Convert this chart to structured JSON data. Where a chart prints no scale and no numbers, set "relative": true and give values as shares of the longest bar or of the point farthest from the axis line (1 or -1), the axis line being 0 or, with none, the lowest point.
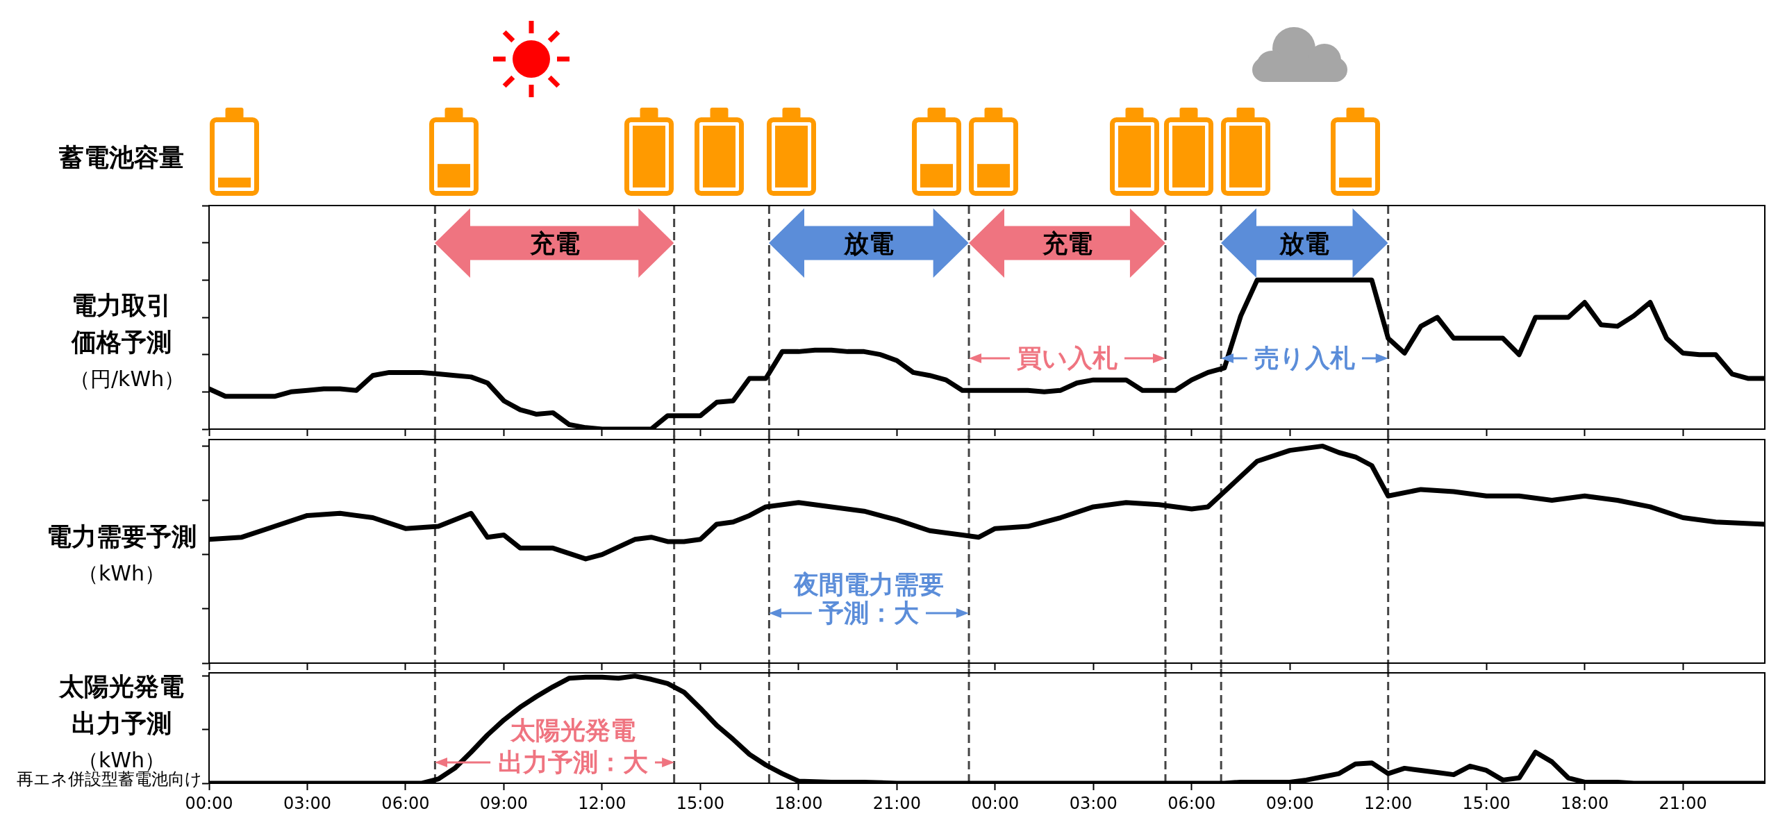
{
  "chart_data": [
    {
      "type": "line",
      "ylabel": "電力取引価格予測（円/kWh）",
      "relative": true,
      "color": "#000000",
      "x": [
        "--01-01T00:00",
        "--01-01T00:30",
        "--01-01T01:00",
        "--01-01T01:30",
        "--01-01T02:00",
        "--01-01T02:30",
        "--01-01T03:00",
        "--01-01T03:30",
        "--01-01T04:00",
        "--01-01T04:30",
        "--01-01T05:00",
        "--01-01T05:30",
        "--01-01T06:00",
        "--01-01T06:30",
        "--01-01T07:00",
        "--01-01T07:30",
        "--01-01T08:00",
        "--01-01T08:30",
        "--01-01T09:00",
        "--01-01T09:30",
        "--01-01T10:00",
        "--01-01T10:30",
        "--01-01T11:00",
        "--01-01T11:30",
        "--01-01T12:00",
        "--01-01T12:30",
        "--01-01T13:00",
        "--01-01T13:30",
        "--01-01T14:00",
        "--01-01T14:30",
        "--01-01T15:00",
        "--01-01T15:30",
        "--01-01T16:00",
        "--01-01T16:30",
        "--01-01T17:00",
        "--01-01T17:30",
        "--01-01T18:00",
        "--01-01T18:30",
        "--01-01T19:00",
        "--01-01T19:30",
        "--01-01T20:00",
        "--01-01T20:30",
        "--01-01T21:00",
        "--01-01T21:30",
        "--01-01T22:00",
        "--01-01T22:30",
        "--01-01T23:00",
        "--01-01T23:30",
        "--01-02T00:00",
        "--01-02T00:30",
        "--01-02T01:00",
        "--01-02T01:30",
        "--01-02T02:00",
        "--01-02T02:30",
        "--01-02T03:00",
        "--01-02T03:30",
        "--01-02T04:00",
        "--01-02T04:30",
        "--01-02T05:00",
        "--01-02T05:30",
        "--01-02T06:00",
        "--01-02T06:30",
        "--01-02T07:00",
        "--01-02T07:30",
        "--01-02T08:00",
        "--01-02T08:30",
        "--01-02T09:00",
        "--01-02T09:30",
        "--01-02T10:00",
        "--01-02T10:30",
        "--01-02T11:00",
        "--01-02T11:30",
        "--01-02T12:00",
        "--01-02T12:30",
        "--01-02T13:00",
        "--01-02T13:30",
        "--01-02T14:00",
        "--01-02T14:30",
        "--01-02T15:00",
        "--01-02T15:30",
        "--01-02T16:00",
        "--01-02T16:30",
        "--01-02T17:00",
        "--01-02T17:30",
        "--01-02T18:00",
        "--01-02T18:30",
        "--01-02T19:00",
        "--01-02T19:30",
        "--01-02T20:00",
        "--01-02T20:30",
        "--01-02T21:00",
        "--01-02T21:30",
        "--01-02T22:00",
        "--01-02T22:30",
        "--01-02T23:00",
        "--01-02T23:30"
      ],
      "values": [
        0.27,
        0.22,
        0.22,
        0.22,
        0.22,
        0.25,
        0.26,
        0.27,
        0.27,
        0.26,
        0.36,
        0.38,
        0.38,
        0.38,
        0.37,
        0.36,
        0.35,
        0.31,
        0.19,
        0.13,
        0.1,
        0.11,
        0.03,
        0.01,
        0,
        0,
        0,
        0,
        0.09,
        0.09,
        0.09,
        0.18,
        0.19,
        0.34,
        0.34,
        0.52,
        0.52,
        0.53,
        0.53,
        0.52,
        0.52,
        0.5,
        0.46,
        0.38,
        0.36,
        0.33,
        0.26,
        0.26,
        0.26,
        0.26,
        0.26,
        0.25,
        0.26,
        0.31,
        0.33,
        0.33,
        0.33,
        0.26,
        0.26,
        0.26,
        0.33,
        0.38,
        0.41,
        0.76,
        1,
        1,
        1,
        1,
        1,
        1,
        1,
        1,
        0.61,
        0.51,
        0.69,
        0.75,
        0.61,
        0.61,
        0.61,
        0.61,
        0.5,
        0.75,
        0.75,
        0.75,
        0.85,
        0.7,
        0.69,
        0.76,
        0.85,
        0.61,
        0.51,
        0.5,
        0.5,
        0.37,
        0.34,
        0.34
      ],
      "xlim": [
        "--01-01T00:00",
        "--01-02T23:30"
      ],
      "xticks": [
        "--01-01T00:00",
        "--01-01T03:00",
        "--01-01T06:00",
        "--01-01T09:00",
        "--01-01T12:00",
        "--01-01T15:00",
        "--01-01T18:00",
        "--01-01T21:00",
        "--01-02T00:00",
        "--01-02T03:00",
        "--01-02T06:00",
        "--01-02T09:00",
        "--01-02T12:00",
        "--01-02T15:00",
        "--01-02T18:00",
        "--01-02T21:00"
      ],
      "tick_labels": false,
      "ref_lines": [
        {
          "axis": "x",
          "value": "--01-01T06:54",
          "line_style": "dashed",
          "color": "#444444"
        },
        {
          "axis": "x",
          "value": "--01-01T14:12",
          "line_style": "dashed",
          "color": "#444444"
        },
        {
          "axis": "x",
          "value": "--01-01T17:06",
          "line_style": "dashed",
          "color": "#444444"
        },
        {
          "axis": "x",
          "value": "--01-01T23:12",
          "line_style": "dashed",
          "color": "#444444"
        },
        {
          "axis": "x",
          "value": "--01-02T05:12",
          "line_style": "dashed",
          "color": "#444444"
        },
        {
          "axis": "x",
          "value": "--01-02T06:54",
          "line_style": "dashed",
          "color": "#444444"
        },
        {
          "axis": "x",
          "value": "--01-02T12:00",
          "line_style": "dashed",
          "color": "#444444"
        }
      ],
      "annotations": [
        "蓄電池容量",
        "充電",
        "放電",
        "充電",
        "放電",
        "買い入札",
        "売り入札"
      ]
    },
    {
      "type": "line",
      "ylabel": "電力需要予測（kWh）",
      "relative": true,
      "color": "#000000",
      "x": [
        "--01-01T00:00",
        "--01-01T01:00",
        "--01-01T02:00",
        "--01-01T03:00",
        "--01-01T04:00",
        "--01-01T05:00",
        "--01-01T06:00",
        "--01-01T07:00",
        "--01-01T08:00",
        "--01-01T08:30",
        "--01-01T09:00",
        "--01-01T09:30",
        "--01-01T10:30",
        "--01-01T11:30",
        "--01-01T12:00",
        "--01-01T13:00",
        "--01-01T13:30",
        "--01-01T14:00",
        "--01-01T14:30",
        "--01-01T15:00",
        "--01-01T15:30",
        "--01-01T16:00",
        "--01-01T16:30",
        "--01-01T17:00",
        "--01-01T18:00",
        "--01-01T19:00",
        "--01-01T20:00",
        "--01-01T21:00",
        "--01-01T22:00",
        "--01-01T23:00",
        "--01-01T23:30",
        "--01-02T00:00",
        "--01-02T01:00",
        "--01-02T02:00",
        "--01-02T03:00",
        "--01-02T04:00",
        "--01-02T05:00",
        "--01-02T06:00",
        "--01-02T06:30",
        "--01-02T08:00",
        "--01-02T09:00",
        "--01-02T10:00",
        "--01-02T10:30",
        "--01-02T11:00",
        "--01-02T11:30",
        "--01-02T12:00",
        "--01-02T13:00",
        "--01-02T14:00",
        "--01-02T15:00",
        "--01-02T16:00",
        "--01-02T17:00",
        "--01-02T18:00",
        "--01-02T19:00",
        "--01-02T20:00",
        "--01-02T21:00",
        "--01-02T22:00",
        "--01-02T23:30"
      ],
      "values": [
        0.57,
        0.58,
        0.63,
        0.68,
        0.69,
        0.67,
        0.62,
        0.63,
        0.69,
        0.58,
        0.59,
        0.53,
        0.53,
        0.48,
        0.5,
        0.57,
        0.58,
        0.56,
        0.56,
        0.57,
        0.64,
        0.65,
        0.68,
        0.72,
        0.74,
        0.72,
        0.7,
        0.66,
        0.61,
        0.59,
        0.58,
        0.62,
        0.63,
        0.67,
        0.72,
        0.74,
        0.73,
        0.71,
        0.72,
        0.93,
        0.98,
        1,
        0.97,
        0.95,
        0.91,
        0.77,
        0.8,
        0.79,
        0.77,
        0.77,
        0.75,
        0.77,
        0.75,
        0.72,
        0.67,
        0.65,
        0.64
      ],
      "xlim": [
        "--01-01T00:00",
        "--01-02T23:30"
      ],
      "xticks": [
        "--01-01T00:00",
        "--01-01T03:00",
        "--01-01T06:00",
        "--01-01T09:00",
        "--01-01T12:00",
        "--01-01T15:00",
        "--01-01T18:00",
        "--01-01T21:00",
        "--01-02T00:00",
        "--01-02T03:00",
        "--01-02T06:00",
        "--01-02T09:00",
        "--01-02T12:00",
        "--01-02T15:00",
        "--01-02T18:00",
        "--01-02T21:00"
      ],
      "tick_labels": false,
      "ref_lines": [
        {
          "axis": "x",
          "value": "--01-01T06:54",
          "line_style": "dashed",
          "color": "#444444"
        },
        {
          "axis": "x",
          "value": "--01-01T14:12",
          "line_style": "dashed",
          "color": "#444444"
        },
        {
          "axis": "x",
          "value": "--01-01T17:06",
          "line_style": "dashed",
          "color": "#444444"
        },
        {
          "axis": "x",
          "value": "--01-01T23:12",
          "line_style": "dashed",
          "color": "#444444"
        },
        {
          "axis": "x",
          "value": "--01-02T05:12",
          "line_style": "dashed",
          "color": "#444444"
        },
        {
          "axis": "x",
          "value": "--01-02T06:54",
          "line_style": "dashed",
          "color": "#444444"
        },
        {
          "axis": "x",
          "value": "--01-02T12:00",
          "line_style": "dashed",
          "color": "#444444"
        }
      ],
      "annotations": [
        "夜間電力需要",
        "予測：大"
      ]
    },
    {
      "type": "line",
      "ylabel": "太陽光発電出力予測（kWh）",
      "relative": true,
      "color": "#000000",
      "x": [
        "--01-01T00:00",
        "--01-01T06:30",
        "--01-01T07:00",
        "--01-01T07:30",
        "--01-01T08:00",
        "--01-01T08:30",
        "--01-01T09:00",
        "--01-01T09:30",
        "--01-01T10:00",
        "--01-01T10:30",
        "--01-01T11:00",
        "--01-01T11:30",
        "--01-01T12:00",
        "--01-01T12:30",
        "--01-01T13:00",
        "--01-01T13:30",
        "--01-01T14:00",
        "--01-01T14:30",
        "--01-01T15:00",
        "--01-01T15:30",
        "--01-01T16:00",
        "--01-01T16:30",
        "--01-01T17:00",
        "--01-01T17:30",
        "--01-01T18:00",
        "--01-01T19:00",
        "--01-01T20:00",
        "--01-01T21:00",
        "--01-02T07:00",
        "--01-02T07:30",
        "--01-02T09:00",
        "--01-02T09:30",
        "--01-02T10:00",
        "--01-02T10:30",
        "--01-02T11:00",
        "--01-02T11:30",
        "--01-02T12:00",
        "--01-02T12:30",
        "--01-02T13:00",
        "--01-02T13:30",
        "--01-02T14:00",
        "--01-02T14:30",
        "--01-02T15:00",
        "--01-02T15:30",
        "--01-02T16:00",
        "--01-02T16:30",
        "--01-02T17:00",
        "--01-02T17:30",
        "--01-02T18:00",
        "--01-02T19:00",
        "--01-02T19:30",
        "--01-02T23:30"
      ],
      "values": [
        0,
        0,
        0.04,
        0.14,
        0.29,
        0.45,
        0.59,
        0.71,
        0.81,
        0.9,
        0.98,
        0.99,
        0.99,
        0.98,
        1,
        0.97,
        0.93,
        0.85,
        0.7,
        0.54,
        0.41,
        0.27,
        0.17,
        0.09,
        0.02,
        0.01,
        0.01,
        0,
        0,
        0.01,
        0.01,
        0.03,
        0.06,
        0.09,
        0.18,
        0.19,
        0.09,
        0.14,
        0.12,
        0.1,
        0.08,
        0.16,
        0.12,
        0.03,
        0.05,
        0.29,
        0.2,
        0.05,
        0.01,
        0.01,
        0,
        0
      ],
      "xlim": [
        "--01-01T00:00",
        "--01-02T23:30"
      ],
      "xticks": [
        {
          "value": "--01-01T00:00",
          "label": "00:00"
        },
        {
          "value": "--01-01T03:00",
          "label": "03:00"
        },
        {
          "value": "--01-01T06:00",
          "label": "06:00"
        },
        {
          "value": "--01-01T09:00",
          "label": "09:00"
        },
        {
          "value": "--01-01T12:00",
          "label": "12:00"
        },
        {
          "value": "--01-01T15:00",
          "label": "15:00"
        },
        {
          "value": "--01-01T18:00",
          "label": "18:00"
        },
        {
          "value": "--01-01T21:00",
          "label": "21:00"
        },
        {
          "value": "--01-02T00:00",
          "label": "00:00"
        },
        {
          "value": "--01-02T03:00",
          "label": "03:00"
        },
        {
          "value": "--01-02T06:00",
          "label": "06:00"
        },
        {
          "value": "--01-02T09:00",
          "label": "09:00"
        },
        {
          "value": "--01-02T12:00",
          "label": "12:00"
        },
        {
          "value": "--01-02T15:00",
          "label": "15:00"
        },
        {
          "value": "--01-02T18:00",
          "label": "18:00"
        },
        {
          "value": "--01-02T21:00",
          "label": "21:00"
        }
      ],
      "tick_labels": "x",
      "ref_lines": [
        {
          "axis": "x",
          "value": "--01-01T06:54",
          "line_style": "dashed",
          "color": "#444444"
        },
        {
          "axis": "x",
          "value": "--01-01T14:12",
          "line_style": "dashed",
          "color": "#444444"
        },
        {
          "axis": "x",
          "value": "--01-01T17:06",
          "line_style": "dashed",
          "color": "#444444"
        },
        {
          "axis": "x",
          "value": "--01-01T23:12",
          "line_style": "dashed",
          "color": "#444444"
        },
        {
          "axis": "x",
          "value": "--01-02T05:12",
          "line_style": "dashed",
          "color": "#444444"
        },
        {
          "axis": "x",
          "value": "--01-02T06:54",
          "line_style": "dashed",
          "color": "#444444"
        },
        {
          "axis": "x",
          "value": "--01-02T12:00",
          "line_style": "dashed",
          "color": "#444444"
        }
      ],
      "annotations": [
        "太陽光発電",
        "出力予測：大",
        "再エネ併設型蓄電池向け"
      ]
    }
  ]
}
